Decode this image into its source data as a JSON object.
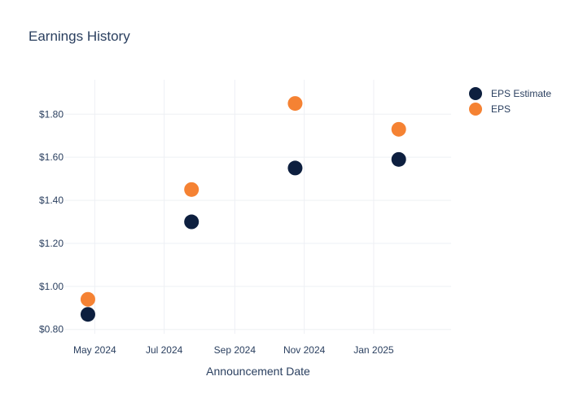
{
  "chart_data": {
    "type": "scatter",
    "title": "Earnings History",
    "xlabel": "Announcement Date",
    "ylabel": "",
    "x_ticks": [
      "May 2024",
      "Jul 2024",
      "Sep 2024",
      "Nov 2024",
      "Jan 2025"
    ],
    "y_ticks": [
      "$0.80",
      "$1.00",
      "$1.20",
      "$1.40",
      "$1.60",
      "$1.80"
    ],
    "ylim": [
      0.78,
      1.96
    ],
    "xlim": [
      "2024-04-05",
      "2025-03-10"
    ],
    "grid": true,
    "legend_position": "top-right",
    "x": [
      "2024-04-25",
      "2024-07-25",
      "2024-10-24",
      "2025-01-23"
    ],
    "series": [
      {
        "name": "EPS Estimate",
        "color": "#0d1f3f",
        "values": [
          0.87,
          1.3,
          1.55,
          1.59
        ]
      },
      {
        "name": "EPS",
        "color": "#f58233",
        "values": [
          0.94,
          1.45,
          1.85,
          1.73
        ]
      }
    ]
  }
}
